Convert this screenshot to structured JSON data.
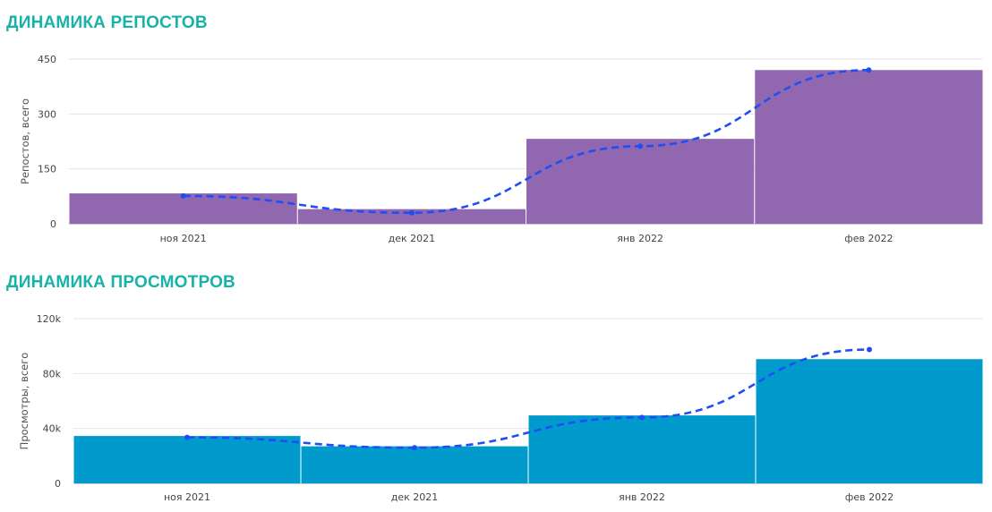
{
  "charts": [
    {
      "title": "ДИНАМИКА РЕПОСТОВ",
      "chart_data": {
        "type": "bar",
        "categories": [
          "ноя 2021",
          "дек 2021",
          "янв 2022",
          "фев 2022"
        ],
        "values": [
          83,
          40,
          232,
          420
        ],
        "trend": [
          76,
          30,
          212,
          420
        ],
        "ylabel": "Репостов, всего",
        "ylim": [
          0,
          450
        ],
        "yticks": [
          0,
          150,
          300,
          450
        ],
        "ytick_labels": [
          "0",
          "150",
          "300",
          "450"
        ],
        "grid": true,
        "bar_color": "#9167af",
        "line_color": "#1f4ef5"
      }
    },
    {
      "title": "ДИНАМИКА ПРОСМОТРОВ",
      "chart_data": {
        "type": "bar",
        "categories": [
          "ноя 2021",
          "дек 2021",
          "янв 2022",
          "фев 2022"
        ],
        "values": [
          34500,
          27000,
          49500,
          90500
        ],
        "trend": [
          33500,
          26000,
          48000,
          97500
        ],
        "ylabel": "Просмотры, всего",
        "ylim": [
          0,
          120000
        ],
        "yticks": [
          0,
          40000,
          80000,
          120000
        ],
        "ytick_labels": [
          "0",
          "40k",
          "80k",
          "120k"
        ],
        "grid": true,
        "bar_color": "#009bcc",
        "line_color": "#1f4ef5"
      }
    }
  ]
}
